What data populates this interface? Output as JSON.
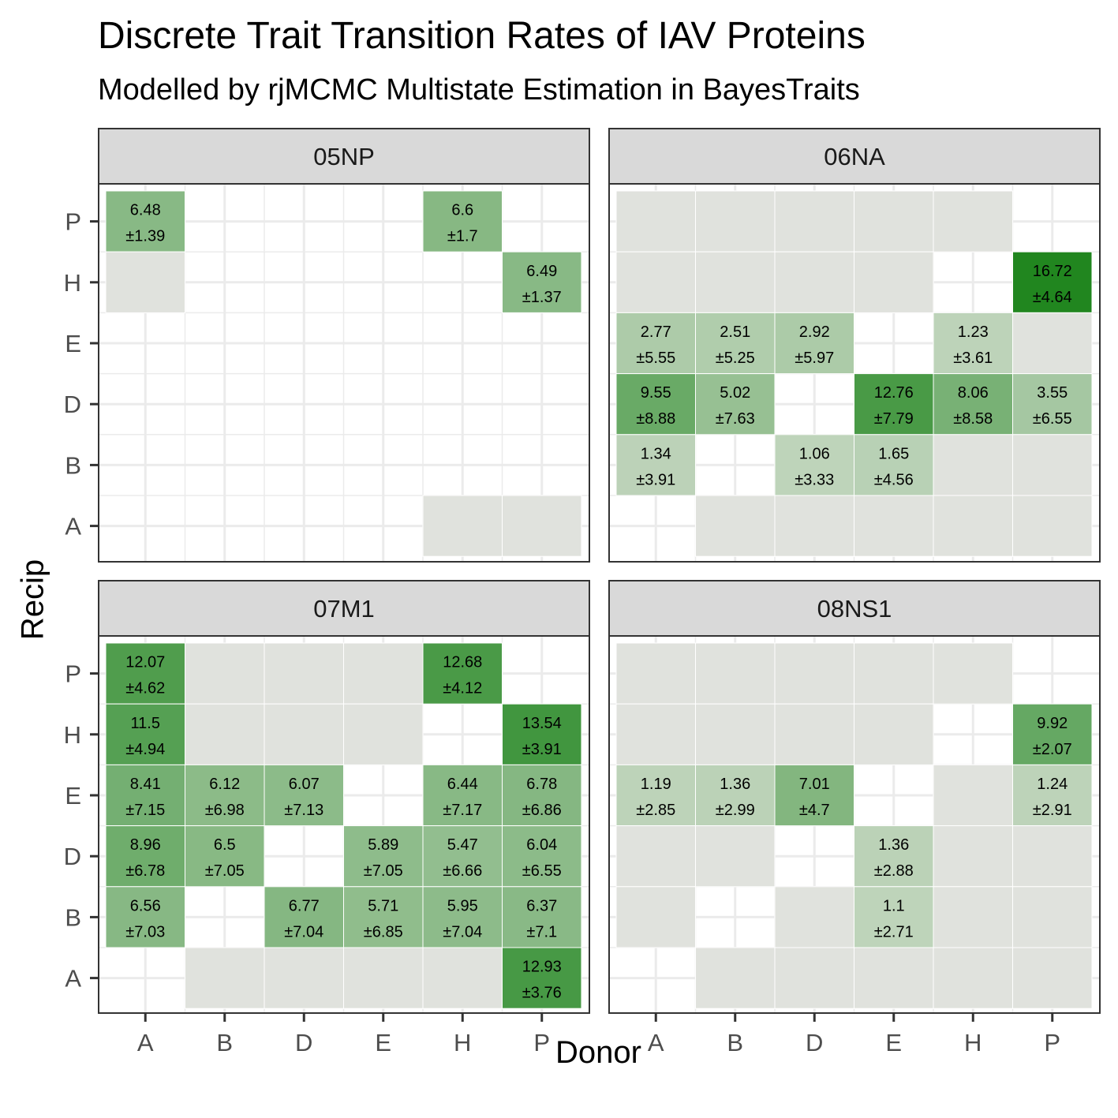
{
  "title": "Discrete Trait Transition Rates of IAV Proteins",
  "subtitle": "Modelled by rjMCMC Multistate Estimation in BayesTraits",
  "chart_data": {
    "type": "heatmap",
    "xlabel": "Donor",
    "ylabel": "Recip",
    "x_categories": [
      "A",
      "B",
      "D",
      "E",
      "H",
      "P"
    ],
    "y_categories": [
      "A",
      "B",
      "D",
      "E",
      "H",
      "P"
    ],
    "colors": {
      "zero": "#e0e2dd",
      "low": "#c9d9c5",
      "high": "#21861f",
      "grid": "#ebebeb",
      "strip": "#d9d9d9"
    },
    "color_max": 16.72,
    "panels": [
      {
        "name": "05NP",
        "cells": [
          {
            "x": "A",
            "y": "P",
            "value": 6.48,
            "sd": 1.39
          },
          {
            "x": "H",
            "y": "P",
            "value": 6.6,
            "sd": 1.7
          },
          {
            "x": "A",
            "y": "H",
            "value": 0
          },
          {
            "x": "P",
            "y": "H",
            "value": 6.49,
            "sd": 1.37
          },
          {
            "x": "H",
            "y": "A",
            "value": 0
          },
          {
            "x": "P",
            "y": "A",
            "value": 0
          }
        ]
      },
      {
        "name": "06NA",
        "cells": [
          {
            "x": "A",
            "y": "P",
            "value": 0
          },
          {
            "x": "B",
            "y": "P",
            "value": 0
          },
          {
            "x": "D",
            "y": "P",
            "value": 0
          },
          {
            "x": "E",
            "y": "P",
            "value": 0
          },
          {
            "x": "H",
            "y": "P",
            "value": 0
          },
          {
            "x": "A",
            "y": "H",
            "value": 0
          },
          {
            "x": "B",
            "y": "H",
            "value": 0
          },
          {
            "x": "D",
            "y": "H",
            "value": 0
          },
          {
            "x": "E",
            "y": "H",
            "value": 0
          },
          {
            "x": "P",
            "y": "H",
            "value": 16.72,
            "sd": 4.64
          },
          {
            "x": "A",
            "y": "E",
            "value": 2.77,
            "sd": 5.55
          },
          {
            "x": "B",
            "y": "E",
            "value": 2.51,
            "sd": 5.25
          },
          {
            "x": "D",
            "y": "E",
            "value": 2.92,
            "sd": 5.97
          },
          {
            "x": "H",
            "y": "E",
            "value": 1.23,
            "sd": 3.61
          },
          {
            "x": "P",
            "y": "E",
            "value": 0
          },
          {
            "x": "A",
            "y": "D",
            "value": 9.55,
            "sd": 8.88
          },
          {
            "x": "B",
            "y": "D",
            "value": 5.02,
            "sd": 7.63
          },
          {
            "x": "E",
            "y": "D",
            "value": 12.76,
            "sd": 7.79
          },
          {
            "x": "H",
            "y": "D",
            "value": 8.06,
            "sd": 8.58
          },
          {
            "x": "P",
            "y": "D",
            "value": 3.55,
            "sd": 6.55
          },
          {
            "x": "A",
            "y": "B",
            "value": 1.34,
            "sd": 3.91
          },
          {
            "x": "D",
            "y": "B",
            "value": 1.06,
            "sd": 3.33
          },
          {
            "x": "E",
            "y": "B",
            "value": 1.65,
            "sd": 4.56
          },
          {
            "x": "H",
            "y": "B",
            "value": 0
          },
          {
            "x": "P",
            "y": "B",
            "value": 0
          },
          {
            "x": "B",
            "y": "A",
            "value": 0
          },
          {
            "x": "D",
            "y": "A",
            "value": 0
          },
          {
            "x": "E",
            "y": "A",
            "value": 0
          },
          {
            "x": "H",
            "y": "A",
            "value": 0
          },
          {
            "x": "P",
            "y": "A",
            "value": 0
          }
        ]
      },
      {
        "name": "07M1",
        "cells": [
          {
            "x": "A",
            "y": "P",
            "value": 12.07,
            "sd": 4.62
          },
          {
            "x": "B",
            "y": "P",
            "value": 0
          },
          {
            "x": "D",
            "y": "P",
            "value": 0
          },
          {
            "x": "E",
            "y": "P",
            "value": 0
          },
          {
            "x": "H",
            "y": "P",
            "value": 12.68,
            "sd": 4.12
          },
          {
            "x": "A",
            "y": "H",
            "value": 11.5,
            "sd": 4.94
          },
          {
            "x": "B",
            "y": "H",
            "value": 0
          },
          {
            "x": "D",
            "y": "H",
            "value": 0
          },
          {
            "x": "E",
            "y": "H",
            "value": 0
          },
          {
            "x": "P",
            "y": "H",
            "value": 13.54,
            "sd": 3.91
          },
          {
            "x": "A",
            "y": "E",
            "value": 8.41,
            "sd": 7.15
          },
          {
            "x": "B",
            "y": "E",
            "value": 6.12,
            "sd": 6.98
          },
          {
            "x": "D",
            "y": "E",
            "value": 6.07,
            "sd": 7.13
          },
          {
            "x": "H",
            "y": "E",
            "value": 6.44,
            "sd": 7.17
          },
          {
            "x": "P",
            "y": "E",
            "value": 6.78,
            "sd": 6.86
          },
          {
            "x": "A",
            "y": "D",
            "value": 8.96,
            "sd": 6.78
          },
          {
            "x": "B",
            "y": "D",
            "value": 6.5,
            "sd": 7.05
          },
          {
            "x": "E",
            "y": "D",
            "value": 5.89,
            "sd": 7.05
          },
          {
            "x": "H",
            "y": "D",
            "value": 5.47,
            "sd": 6.66
          },
          {
            "x": "P",
            "y": "D",
            "value": 6.04,
            "sd": 6.55
          },
          {
            "x": "A",
            "y": "B",
            "value": 6.56,
            "sd": 7.03
          },
          {
            "x": "D",
            "y": "B",
            "value": 6.77,
            "sd": 7.04
          },
          {
            "x": "E",
            "y": "B",
            "value": 5.71,
            "sd": 6.85
          },
          {
            "x": "H",
            "y": "B",
            "value": 5.95,
            "sd": 7.04
          },
          {
            "x": "P",
            "y": "B",
            "value": 6.37,
            "sd": 7.1
          },
          {
            "x": "B",
            "y": "A",
            "value": 0
          },
          {
            "x": "D",
            "y": "A",
            "value": 0
          },
          {
            "x": "E",
            "y": "A",
            "value": 0
          },
          {
            "x": "H",
            "y": "A",
            "value": 0
          },
          {
            "x": "P",
            "y": "A",
            "value": 12.93,
            "sd": 3.76
          }
        ]
      },
      {
        "name": "08NS1",
        "cells": [
          {
            "x": "A",
            "y": "P",
            "value": 0
          },
          {
            "x": "B",
            "y": "P",
            "value": 0
          },
          {
            "x": "D",
            "y": "P",
            "value": 0
          },
          {
            "x": "E",
            "y": "P",
            "value": 0
          },
          {
            "x": "H",
            "y": "P",
            "value": 0
          },
          {
            "x": "A",
            "y": "H",
            "value": 0
          },
          {
            "x": "B",
            "y": "H",
            "value": 0
          },
          {
            "x": "D",
            "y": "H",
            "value": 0
          },
          {
            "x": "E",
            "y": "H",
            "value": 0
          },
          {
            "x": "P",
            "y": "H",
            "value": 9.92,
            "sd": 2.07
          },
          {
            "x": "A",
            "y": "E",
            "value": 1.19,
            "sd": 2.85
          },
          {
            "x": "B",
            "y": "E",
            "value": 1.36,
            "sd": 2.99
          },
          {
            "x": "D",
            "y": "E",
            "value": 7.01,
            "sd": 4.7
          },
          {
            "x": "H",
            "y": "E",
            "value": 0
          },
          {
            "x": "P",
            "y": "E",
            "value": 1.24,
            "sd": 2.91
          },
          {
            "x": "A",
            "y": "D",
            "value": 0
          },
          {
            "x": "B",
            "y": "D",
            "value": 0
          },
          {
            "x": "E",
            "y": "D",
            "value": 1.36,
            "sd": 2.88
          },
          {
            "x": "H",
            "y": "D",
            "value": 0
          },
          {
            "x": "P",
            "y": "D",
            "value": 0
          },
          {
            "x": "A",
            "y": "B",
            "value": 0
          },
          {
            "x": "D",
            "y": "B",
            "value": 0
          },
          {
            "x": "E",
            "y": "B",
            "value": 1.1,
            "sd": 2.71
          },
          {
            "x": "H",
            "y": "B",
            "value": 0
          },
          {
            "x": "P",
            "y": "B",
            "value": 0
          },
          {
            "x": "B",
            "y": "A",
            "value": 0
          },
          {
            "x": "D",
            "y": "A",
            "value": 0
          },
          {
            "x": "E",
            "y": "A",
            "value": 0
          },
          {
            "x": "H",
            "y": "A",
            "value": 0
          },
          {
            "x": "P",
            "y": "A",
            "value": 0
          }
        ]
      }
    ]
  }
}
